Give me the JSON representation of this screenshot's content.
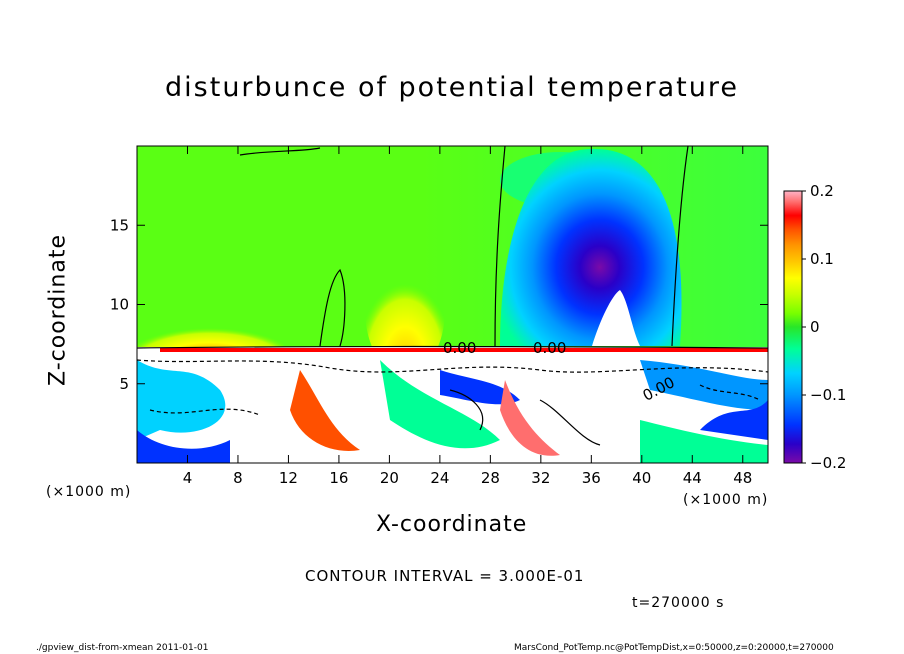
{
  "title": "disturbunce of potential temperature",
  "xlabel": "X-coordinate",
  "ylabel": "Z-coordinate",
  "x_unit_left": "(×1000 m)",
  "x_unit_right": "(×1000 m)",
  "contour_interval": "CONTOUR INTERVAL = 3.000E-01",
  "time_label": "t=270000 s",
  "footer_left": "./gpview_dist-from-xmean   2011-01-01",
  "footer_right": "MarsCond_PotTemp.nc@PotTempDist,x=0:50000,z=0:20000,t=270000",
  "contour_labels": [
    "0.00",
    "0.00",
    "0.00"
  ],
  "chart_data": {
    "type": "heatmap",
    "title": "disturbunce of potential temperature",
    "xlabel": "X-coordinate",
    "ylabel": "Z-coordinate",
    "xlim": [
      0,
      50
    ],
    "ylim": [
      0,
      20
    ],
    "x_ticks": [
      4,
      8,
      12,
      16,
      20,
      24,
      28,
      32,
      36,
      40,
      44,
      48
    ],
    "y_ticks": [
      5,
      10,
      15
    ],
    "colorbar": {
      "vmin": -0.2,
      "vmax": 0.2,
      "ticks": [
        0.2,
        0.1,
        0,
        -0.1,
        -0.2
      ],
      "tick_labels": [
        "0.2",
        "0.1",
        "0",
        "−0.1",
        "−0.2"
      ],
      "colors": [
        "#7a0aa8",
        "#2a00c8",
        "#0032ff",
        "#0096ff",
        "#00d2ff",
        "#00ff96",
        "#28e628",
        "#78ff00",
        "#c8ff00",
        "#ffff00",
        "#ffc800",
        "#ff9600",
        "#ff5000",
        "#ff0000",
        "#ff6e6e",
        "#ffb4c8"
      ]
    },
    "contour_interval": 0.3,
    "time_s": 270000
  }
}
